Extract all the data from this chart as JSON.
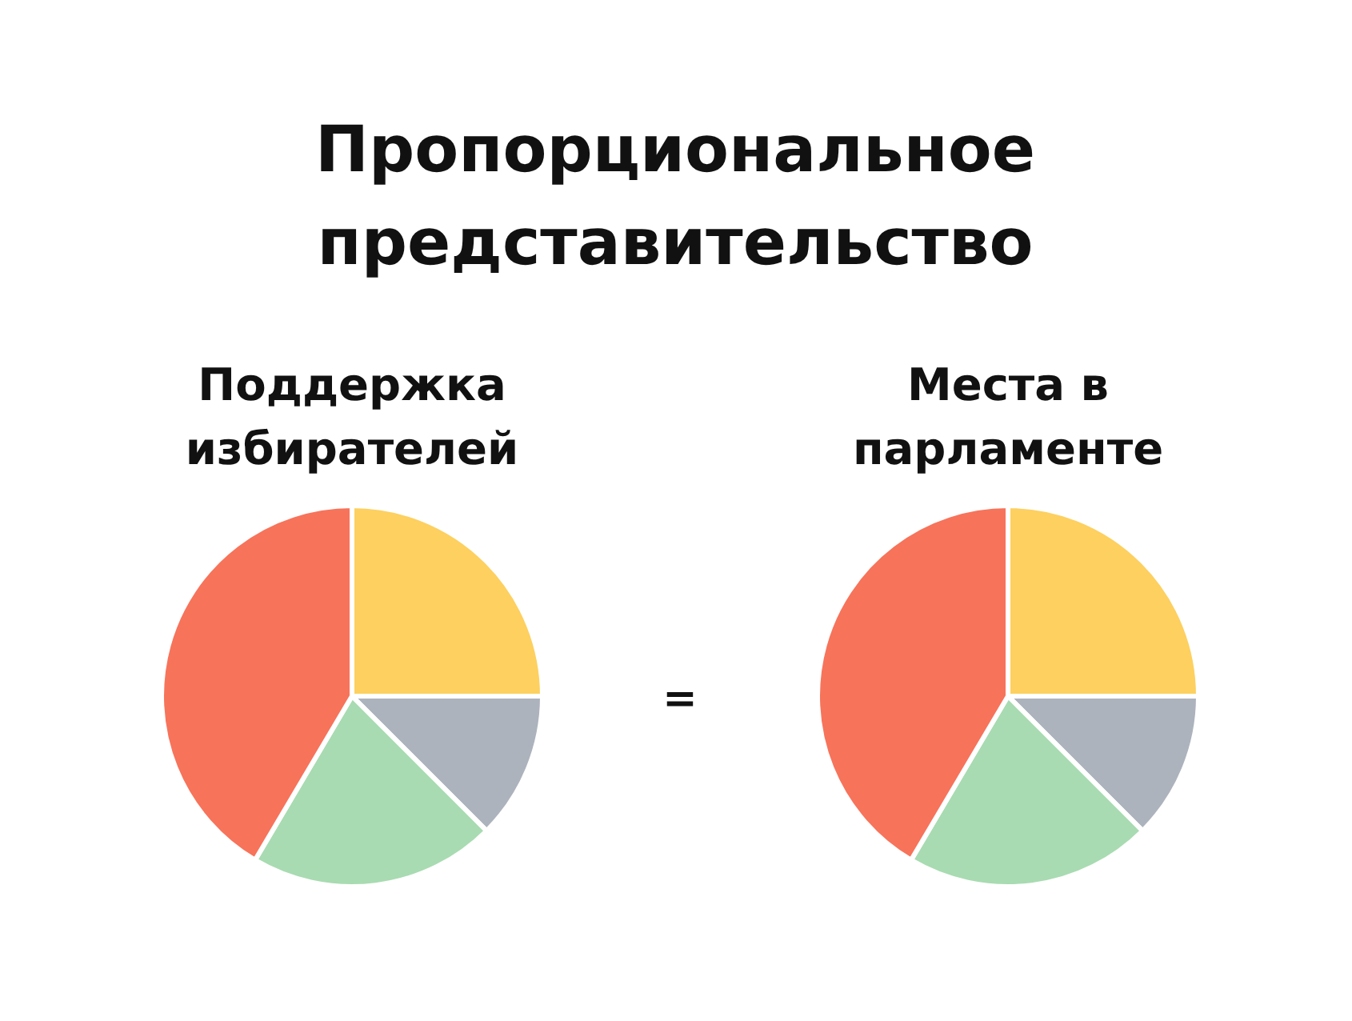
{
  "chart_data": [
    {
      "type": "other",
      "title": "Пропорциональное представительство",
      "annotations": [
        "="
      ]
    },
    {
      "type": "pie",
      "title": "Поддержка избирателей",
      "categories": [
        null,
        null,
        null,
        null
      ],
      "values": [
        25,
        12.5,
        21,
        41.5
      ],
      "colors": [
        "#fdd05f",
        "#adb3bd",
        "#a8dbb1",
        "#f7735a"
      ]
    },
    {
      "type": "pie",
      "title": "Места в парламенте",
      "categories": [
        null,
        null,
        null,
        null
      ],
      "values": [
        25,
        12.5,
        21,
        41.5
      ],
      "colors": [
        "#fdd05f",
        "#adb3bd",
        "#a8dbb1",
        "#f7735a"
      ]
    }
  ]
}
